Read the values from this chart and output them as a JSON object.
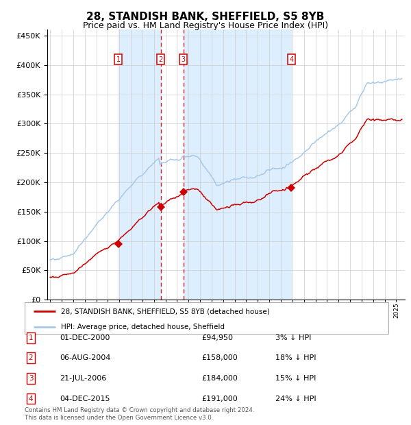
{
  "title": "28, STANDISH BANK, SHEFFIELD, S5 8YB",
  "subtitle": "Price paid vs. HM Land Registry's House Price Index (HPI)",
  "legend_property": "28, STANDISH BANK, SHEFFIELD, S5 8YB (detached house)",
  "legend_hpi": "HPI: Average price, detached house, Sheffield",
  "footer": "Contains HM Land Registry data © Crown copyright and database right 2024.\nThis data is licensed under the Open Government Licence v3.0.",
  "sales": [
    {
      "label": "1",
      "date": "01-DEC-2000",
      "date_num": 2000.92,
      "price": 94950,
      "pct": "3% ↓ HPI"
    },
    {
      "label": "2",
      "date": "06-AUG-2004",
      "date_num": 2004.6,
      "price": 158000,
      "pct": "18% ↓ HPI"
    },
    {
      "label": "3",
      "date": "21-JUL-2006",
      "date_num": 2006.55,
      "price": 184000,
      "pct": "15% ↓ HPI"
    },
    {
      "label": "4",
      "date": "04-DEC-2015",
      "date_num": 2015.92,
      "price": 191000,
      "pct": "24% ↓ HPI"
    }
  ],
  "ylim": [
    0,
    460000
  ],
  "xlim": [
    1994.75,
    2025.75
  ],
  "yticks": [
    0,
    50000,
    100000,
    150000,
    200000,
    250000,
    300000,
    350000,
    400000,
    450000
  ],
  "hpi_color": "#a8c8e8",
  "property_color": "#cc0000",
  "shade_color": "#ddeeff",
  "grid_color": "#cccccc",
  "bg_color": "#ffffff",
  "title_fontsize": 11,
  "subtitle_fontsize": 9
}
